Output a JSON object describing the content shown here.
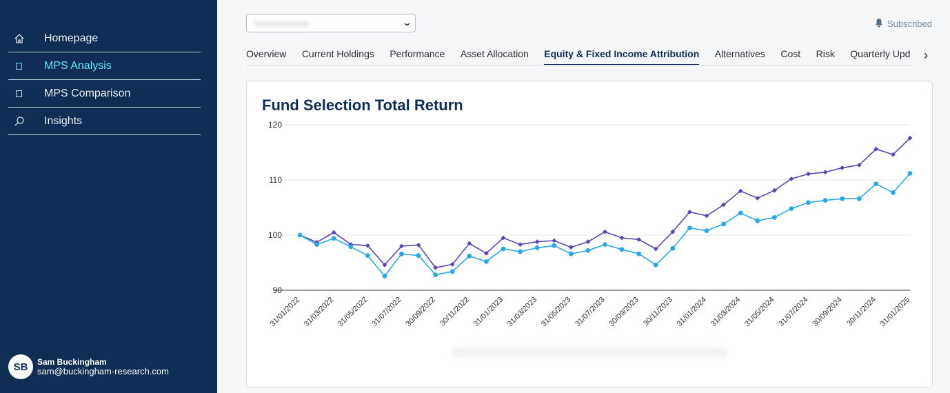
{
  "sidebar": {
    "items": [
      {
        "label": "Homepage",
        "icon": "home-icon",
        "active": false
      },
      {
        "label": "MPS Analysis",
        "icon": "square-icon",
        "active": true
      },
      {
        "label": "MPS Comparison",
        "icon": "square-icon",
        "active": false
      },
      {
        "label": "Insights",
        "icon": "search-icon",
        "active": false
      }
    ],
    "user": {
      "initials": "SB",
      "name": "Sam Buckingham",
      "email": "sam@buckingham-research.com"
    }
  },
  "header": {
    "select_value": "",
    "subscribed_label": "Subscribed"
  },
  "tabs": [
    {
      "label": "Overview"
    },
    {
      "label": "Current Holdings"
    },
    {
      "label": "Performance"
    },
    {
      "label": "Asset Allocation"
    },
    {
      "label": "Equity & Fixed Income Attribution",
      "active": true
    },
    {
      "label": "Alternatives"
    },
    {
      "label": "Cost"
    },
    {
      "label": "Risk"
    },
    {
      "label": "Quarterly Upd"
    }
  ],
  "chart_title": "Fund Selection Total Return",
  "colors": {
    "series_1": "#5b44b8",
    "series_2": "#29a8e8",
    "accent": "#5ee7ff",
    "navy": "#0f2d55"
  },
  "chart_data": {
    "type": "line",
    "title": "Fund Selection Total Return",
    "ylim": [
      90,
      120
    ],
    "yticks": [
      90,
      100,
      110,
      120
    ],
    "grid": true,
    "x": [
      "31/01/2022",
      "28/02/2022",
      "31/03/2022",
      "30/04/2022",
      "31/05/2022",
      "30/06/2022",
      "31/07/2022",
      "31/08/2022",
      "30/09/2022",
      "31/10/2022",
      "30/11/2022",
      "31/12/2022",
      "31/01/2023",
      "28/02/2023",
      "31/03/2023",
      "30/04/2023",
      "31/05/2023",
      "30/06/2023",
      "31/07/2023",
      "31/08/2023",
      "30/09/2023",
      "31/10/2023",
      "30/11/2023",
      "31/12/2023",
      "31/01/2024",
      "29/02/2024",
      "31/03/2024",
      "30/04/2024",
      "31/05/2024",
      "30/06/2024",
      "31/07/2024",
      "31/08/2024",
      "30/09/2024",
      "31/10/2024",
      "30/11/2024",
      "31/12/2024",
      "31/01/2025"
    ],
    "x_tick_labels": [
      "31/01/2022",
      "31/03/2022",
      "31/05/2022",
      "31/07/2022",
      "30/09/2022",
      "30/11/2022",
      "31/01/2023",
      "31/03/2023",
      "31/05/2023",
      "31/07/2023",
      "30/09/2023",
      "30/11/2023",
      "31/01/2024",
      "31/03/2024",
      "31/05/2024",
      "31/07/2024",
      "30/09/2024",
      "30/11/2024",
      "31/01/2025"
    ],
    "series": [
      {
        "values": [
          100.0,
          98.7,
          100.5,
          98.3,
          98.1,
          94.6,
          98.0,
          98.2,
          94.1,
          94.7,
          98.5,
          96.7,
          99.5,
          98.3,
          98.8,
          99.0,
          97.8,
          98.8,
          100.6,
          99.5,
          99.2,
          97.5,
          100.6,
          104.2,
          103.5,
          105.5,
          108.0,
          106.7,
          108.1,
          110.2,
          111.1,
          111.4,
          112.2,
          112.7,
          115.6,
          114.6,
          117.6
        ],
        "marker": "diamond",
        "color": "#5b44b8"
      },
      {
        "values": [
          100.0,
          98.3,
          99.4,
          97.9,
          96.3,
          92.6,
          96.6,
          96.3,
          92.8,
          93.4,
          96.2,
          95.2,
          97.5,
          97.0,
          97.7,
          98.1,
          96.6,
          97.2,
          98.3,
          97.4,
          96.6,
          94.6,
          97.6,
          101.3,
          100.8,
          102.0,
          104.0,
          102.6,
          103.2,
          104.8,
          105.9,
          106.3,
          106.6,
          106.6,
          109.3,
          107.7,
          111.2
        ],
        "marker": "circle",
        "color": "#29a8e8"
      }
    ]
  }
}
